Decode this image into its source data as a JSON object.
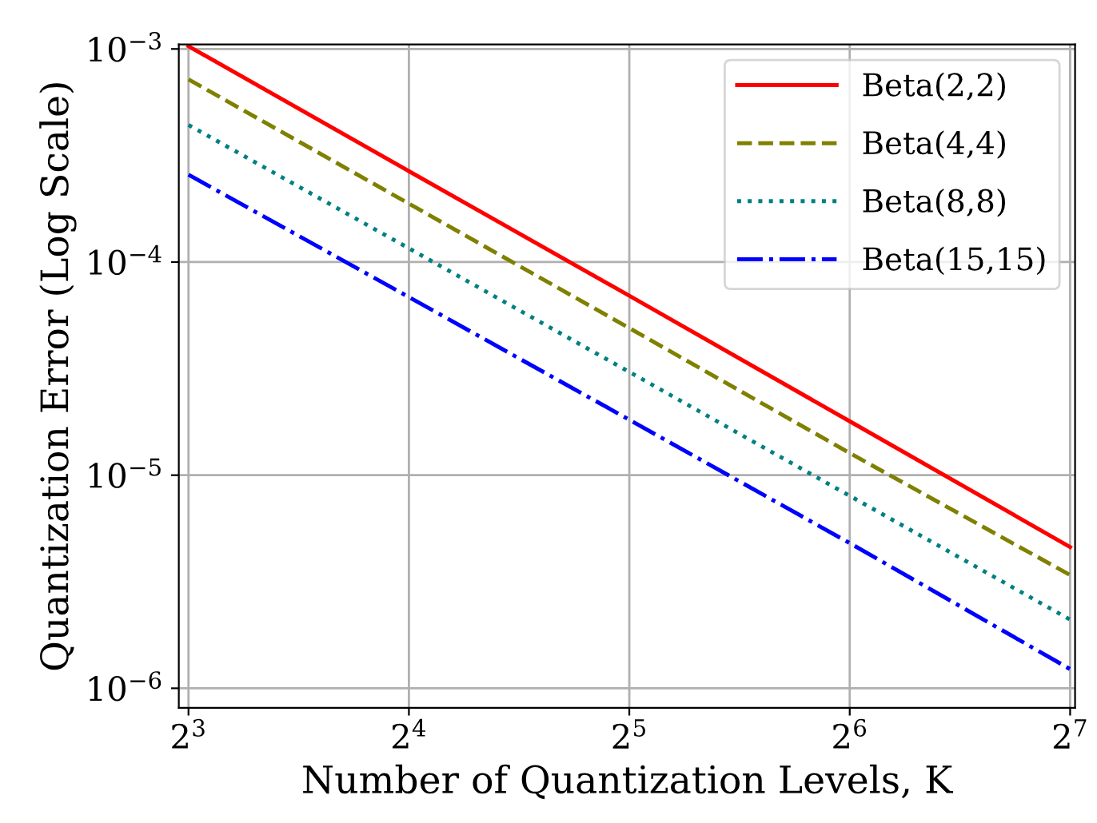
{
  "chart_data": {
    "type": "line",
    "xlabel": "Number of Quantization Levels, K",
    "ylabel": "Quantization Error (Log Scale)",
    "x": [
      8,
      16,
      32,
      64,
      128
    ],
    "series": [
      {
        "name": "Beta(2,2)",
        "color": "#ff0000",
        "line_style": "solid",
        "values": [
          0.00103,
          0.000267,
          6.95e-05,
          1.79e-05,
          4.6e-06
        ]
      },
      {
        "name": "Beta(4,4)",
        "color": "#808000",
        "line_style": "dashed",
        "values": [
          0.00072,
          0.000188,
          4.9e-05,
          1.27e-05,
          3.4e-06
        ]
      },
      {
        "name": "Beta(8,8)",
        "color": "#008080",
        "line_style": "dotted",
        "values": [
          0.00044,
          0.000116,
          3.05e-05,
          8e-06,
          2.1e-06
        ]
      },
      {
        "name": "Beta(15,15)",
        "color": "#0000ff",
        "line_style": "dashdot",
        "values": [
          0.000257,
          6.85e-05,
          1.82e-05,
          4.8e-06,
          1.23e-06
        ]
      }
    ],
    "log": "xy",
    "xlim": [
      7.76,
      130
    ],
    "ylim": [
      8.1e-07,
      0.00105
    ],
    "xticks": [
      {
        "value": 8,
        "label": "2$^{3}$"
      },
      {
        "value": 16,
        "label": "2$^{4}$"
      },
      {
        "value": 32,
        "label": "2$^{5}$"
      },
      {
        "value": 64,
        "label": "2$^{6}$"
      },
      {
        "value": 128,
        "label": "2$^{7}$"
      }
    ],
    "yticks": [
      {
        "value": 1e-06,
        "label": "10$^{−6}$"
      },
      {
        "value": 1e-05,
        "label": "10$^{−5}$"
      },
      {
        "value": 0.0001,
        "label": "10$^{−4}$"
      },
      {
        "value": 0.001,
        "label": "10$^{−3}$"
      }
    ],
    "grid": true,
    "legend": "top right"
  }
}
